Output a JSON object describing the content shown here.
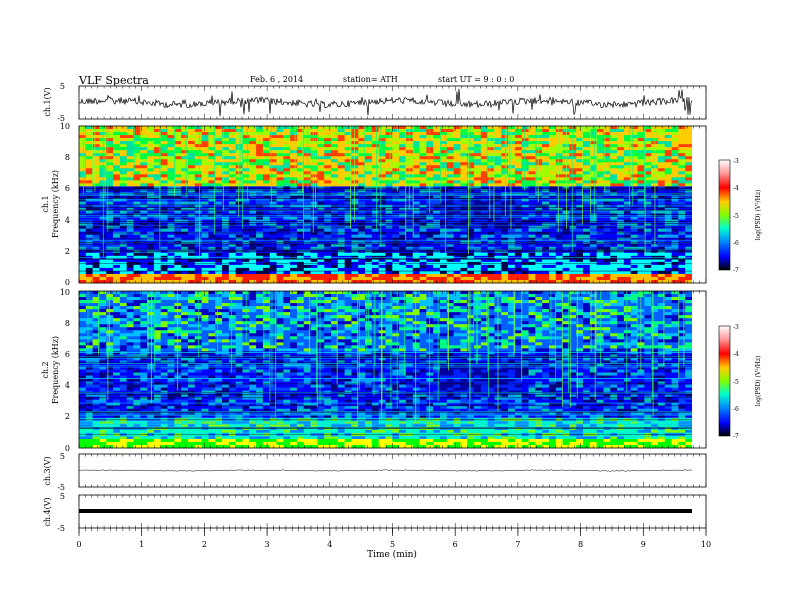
{
  "header": {
    "title": "VLF  Spectra",
    "date": "Feb. 6  , 2014",
    "station": "station= ATH",
    "start": "start  UT  =   9  : 0  : 0"
  },
  "colorbar": {
    "ticks": [
      "-3",
      "-4",
      "-5",
      "-6",
      "-7"
    ],
    "label": "log(PSD) (V²/Hz)",
    "colors": [
      "#ffffff",
      "#ff0000",
      "#ffff00",
      "#00ff00",
      "#00ffff",
      "#0000ff",
      "#000000"
    ]
  },
  "chart_data": [
    {
      "type": "line",
      "panel": "ch1-waveform",
      "ylabel": "ch.1(V)",
      "yticks": [
        "5",
        "-5"
      ],
      "ylim": [
        -5,
        5
      ],
      "xlim": [
        0,
        10
      ],
      "baseline": 0,
      "color": "#000000"
    },
    {
      "type": "heatmap",
      "panel": "ch1-spectrogram",
      "ylabel_ch": "ch.1",
      "ylabel": "Frequency  (kHz)",
      "yticks": [
        "10",
        "8",
        "6",
        "4",
        "2",
        "0"
      ],
      "ylim": [
        0,
        10
      ],
      "xlim": [
        0,
        10
      ],
      "zlim": [
        -7,
        -3
      ]
    },
    {
      "type": "heatmap",
      "panel": "ch2-spectrogram",
      "ylabel_ch": "ch.2",
      "ylabel": "Frequency  (kHz)",
      "yticks": [
        "10",
        "8",
        "6",
        "4",
        "2",
        "0"
      ],
      "ylim": [
        0,
        10
      ],
      "xlim": [
        0,
        10
      ],
      "zlim": [
        -7,
        -3
      ]
    },
    {
      "type": "line",
      "panel": "ch3-waveform",
      "ylabel": "ch.3(V)",
      "yticks": [
        "5",
        "-5"
      ],
      "ylim": [
        -5,
        5
      ],
      "xlim": [
        0,
        10
      ],
      "baseline": 0,
      "color": "#000000"
    },
    {
      "type": "line",
      "panel": "ch4-waveform",
      "ylabel": "ch.4(V)",
      "yticks": [
        "5",
        "-5"
      ],
      "ylim": [
        -5,
        5
      ],
      "xlim": [
        0,
        10
      ],
      "baseline": 0,
      "color": "#000000"
    }
  ],
  "xaxis": {
    "label": "Time  (min)",
    "ticks": [
      "0",
      "1",
      "2",
      "3",
      "4",
      "5",
      "6",
      "7",
      "8",
      "9",
      "10"
    ]
  }
}
